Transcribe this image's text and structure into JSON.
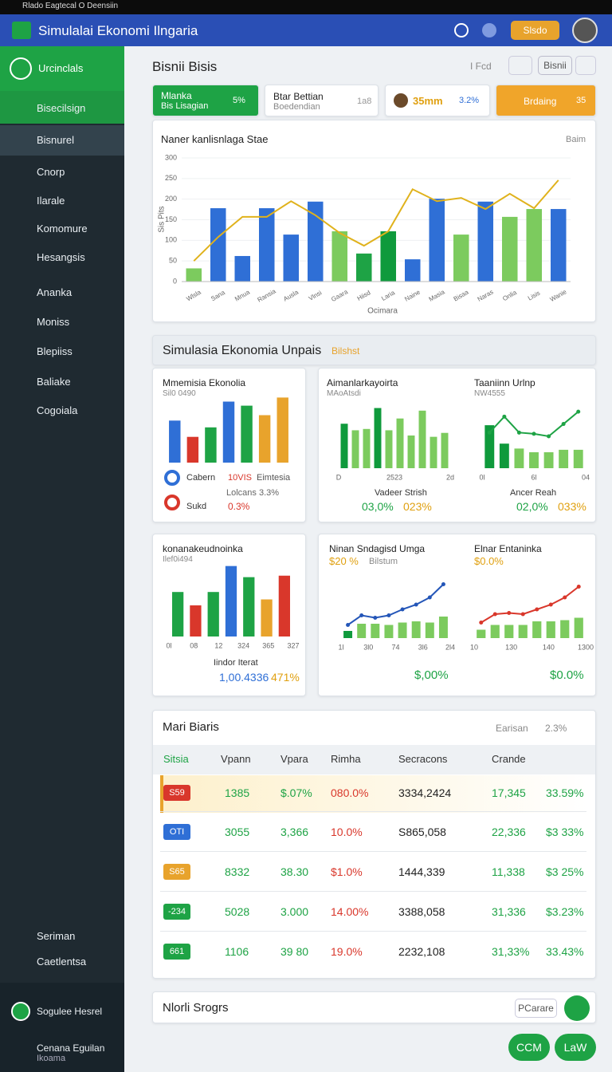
{
  "status_bar": {
    "text": "Rlado Eagtecal O Deensiin"
  },
  "header": {
    "title": "Simulalai Ekonomi Ilngaria",
    "badge": "Slsdo"
  },
  "sidebar": {
    "brand": "Urcinclals",
    "items": [
      "Bisecilsign",
      "Bisnurel",
      "Cnorp",
      "Ilarale",
      "Komomure",
      "Hesangsis",
      "Ananka",
      "Moniss",
      "Blepiiss",
      "Baliake",
      "Cogoiala"
    ],
    "bottom": [
      "Seriman",
      "Caetlentsa"
    ],
    "user": "Sogulee Hesrel",
    "footer": [
      "Cenana Eguilan",
      "Ikoama"
    ]
  },
  "page": {
    "title": "Bisnii Bisis",
    "toolbar": [
      "I Fcd",
      "Bisnii"
    ]
  },
  "kpis": [
    {
      "label": "Mlanka",
      "sub": "Bis Lisagian",
      "value": "5%"
    },
    {
      "label": "Btar Bettian",
      "sub": "Boedendian",
      "value": "1a8"
    },
    {
      "value": "35mm",
      "delta": "3.2%"
    },
    {
      "label": "Brdaing",
      "value": "35"
    }
  ],
  "section": {
    "title": "Simulasia Ekonomia Unpais",
    "badge": "Bilshst"
  },
  "chart_data": [
    {
      "type": "combo",
      "title": "Naner kanlisnlaga Stae",
      "legend": "Baim",
      "y_label": "Sis Pits",
      "x_label": "Ocimara",
      "categories": [
        "Wlsla",
        "Sana",
        "Mnua",
        "Ransia",
        "Ausla",
        "Vlnsi",
        "Gaara",
        "Hiisd",
        "Laria",
        "Naine",
        "Masia",
        "Bisaa",
        "Naras",
        "Onlia",
        "Lisis",
        "Wanie"
      ],
      "values": [
        32,
        178,
        62,
        178,
        114,
        194,
        122,
        68,
        122,
        54,
        201,
        114,
        194,
        157,
        176,
        176
      ],
      "colors": [
        "#7ccb5e",
        "#2f6fd6",
        "#2f6fd6",
        "#2f6fd6",
        "#2f6fd6",
        "#2f6fd6",
        "#7ccb5e",
        "#1ea345",
        "#0f9a3c",
        "#2f6fd6",
        "#2f6fd6",
        "#7ccb5e",
        "#2f6fd6",
        "#7ccb5e",
        "#7ccb5e",
        "#2f6fd6"
      ],
      "line_values": [
        50,
        108,
        157,
        157,
        195,
        161,
        118,
        87,
        122,
        224,
        195,
        203,
        176,
        213,
        178,
        246
      ],
      "line_color": "#e0b21c",
      "ylim": [
        0,
        300
      ],
      "yticks": [
        0,
        50,
        100,
        150,
        200,
        250,
        300
      ],
      "grid": true
    },
    {
      "type": "bar",
      "title": "Mmemisia Ekonolia",
      "subtitle": "Sil0 0490",
      "values": [
        62,
        38,
        52,
        90,
        84,
        70,
        96
      ],
      "colors": [
        "#2f6fd6",
        "#d9372b",
        "#1ea345",
        "#2f6fd6",
        "#1ea345",
        "#e8a32c",
        "#e8a32c"
      ],
      "ylim": [
        0,
        100
      ],
      "notes": [
        "Cabern",
        "10VIS",
        "Eimtesia",
        "Lolcans 3.3%",
        "Sukd",
        "0.3%"
      ]
    },
    {
      "type": "bar",
      "title": "Aimanlarkayoirta",
      "subtitle": "MAoAtsdi",
      "values": [
        68,
        58,
        60,
        92,
        58,
        76,
        50,
        88,
        48,
        54
      ],
      "colors": [
        "#0f9a3c",
        "#7ccb5e",
        "#7ccb5e",
        "#0f9a3c",
        "#7ccb5e",
        "#7ccb5e",
        "#7ccb5e",
        "#7ccb5e",
        "#7ccb5e",
        "#7ccb5e"
      ],
      "ylim": [
        0,
        100
      ],
      "axis_labels": [
        "D",
        "2523",
        "2d"
      ],
      "notes": [
        "Vadeer Strish",
        "03,0%",
        "023%"
      ]
    },
    {
      "type": "combo",
      "title": "Taaniinn Urlnp",
      "subtitle": "NW4555",
      "values": [
        70,
        40,
        32,
        26,
        26,
        30,
        30
      ],
      "colors": [
        "#0f9a3c",
        "#0f9a3c",
        "#7ccb5e",
        "#7ccb5e",
        "#7ccb5e",
        "#7ccb5e",
        "#7ccb5e"
      ],
      "line_values": [
        58,
        84,
        58,
        56,
        52,
        72,
        92
      ],
      "line_color": "#1ea345",
      "ylim": [
        0,
        100
      ],
      "axis_labels": [
        "0l",
        "6l",
        "04"
      ],
      "notes": [
        "Ancer Reah",
        "02,0%",
        "033%"
      ]
    },
    {
      "type": "bar",
      "title": "konanakeudnoinka",
      "subtitle": "Ilef0i494",
      "values": [
        60,
        42,
        60,
        95,
        80,
        50,
        82
      ],
      "colors": [
        "#1ea345",
        "#d9372b",
        "#1ea345",
        "#2f6fd6",
        "#1ea345",
        "#e8a32c",
        "#d9372b"
      ],
      "ylim": [
        0,
        100
      ],
      "axis_labels": [
        "0l",
        "08",
        "12",
        "324",
        "365",
        "327"
      ],
      "notes": [
        "Iindor Iterat",
        "1,00.4336",
        "471%"
      ]
    },
    {
      "type": "combo",
      "title": "Ninan Sndagisd Umga",
      "subtitle": "$20 %",
      "tag": "Bilstum",
      "values": [
        12,
        24,
        24,
        22,
        26,
        28,
        26,
        36
      ],
      "colors": [
        "#0f9a3c",
        "#7ccb5e",
        "#7ccb5e",
        "#7ccb5e",
        "#7ccb5e",
        "#7ccb5e",
        "#7ccb5e",
        "#7ccb5e"
      ],
      "line_values": [
        22,
        38,
        34,
        38,
        48,
        56,
        68,
        90
      ],
      "line_color": "#2456b8",
      "ylim": [
        0,
        100
      ],
      "axis_labels": [
        "1l",
        "3l0",
        "74",
        "3l6",
        "2l4"
      ],
      "notes": [
        "$,00%"
      ]
    },
    {
      "type": "combo",
      "title": "Elnar Entaninka",
      "subtitle": "$0.0%",
      "values": [
        14,
        22,
        22,
        22,
        28,
        28,
        30,
        34
      ],
      "colors": [
        "#7ccb5e",
        "#7ccb5e",
        "#7ccb5e",
        "#7ccb5e",
        "#7ccb5e",
        "#7ccb5e",
        "#7ccb5e",
        "#7ccb5e"
      ],
      "line_values": [
        26,
        40,
        42,
        40,
        48,
        56,
        68,
        86
      ],
      "line_color": "#d9372b",
      "ylim": [
        0,
        100
      ],
      "axis_labels": [
        "10",
        "130",
        "140",
        "1300"
      ],
      "notes": [
        "$0.0%"
      ]
    }
  ],
  "table": {
    "title": "Mari Biaris",
    "filter": "Earisan",
    "filter_value": "2.3%",
    "columns": [
      "Sitsia",
      "Vpann",
      "Vpara",
      "Rimha",
      "Secracons",
      "Crande"
    ],
    "badge_colors": [
      "#d9372b",
      "#2f6fd6",
      "#e8a32c",
      "#1ea345",
      "#1ea345"
    ],
    "rows": [
      [
        "S59",
        "1385",
        "$.07%",
        "080.0%",
        "3334,2424",
        "17,345",
        "33.59%"
      ],
      [
        "OTI",
        "3055",
        "3,366",
        "10.0%",
        "S865,058",
        "22,336",
        "$3 33%"
      ],
      [
        "S65",
        "8332",
        "38.30",
        "$1.0%",
        "1444,339",
        "11,338",
        "$3 25%"
      ],
      [
        "-234",
        "5028",
        "3.000",
        "14.00%",
        "3388,058",
        "31,336",
        "$3.23%"
      ],
      [
        "661",
        "1106",
        "39 80",
        "19.0%",
        "2232,108",
        "31,33%",
        "33.43%"
      ]
    ]
  },
  "footer_bar": {
    "title": "Nlorli Srogrs",
    "button": "PCarare",
    "actions": [
      "CCM",
      "LaW"
    ]
  }
}
